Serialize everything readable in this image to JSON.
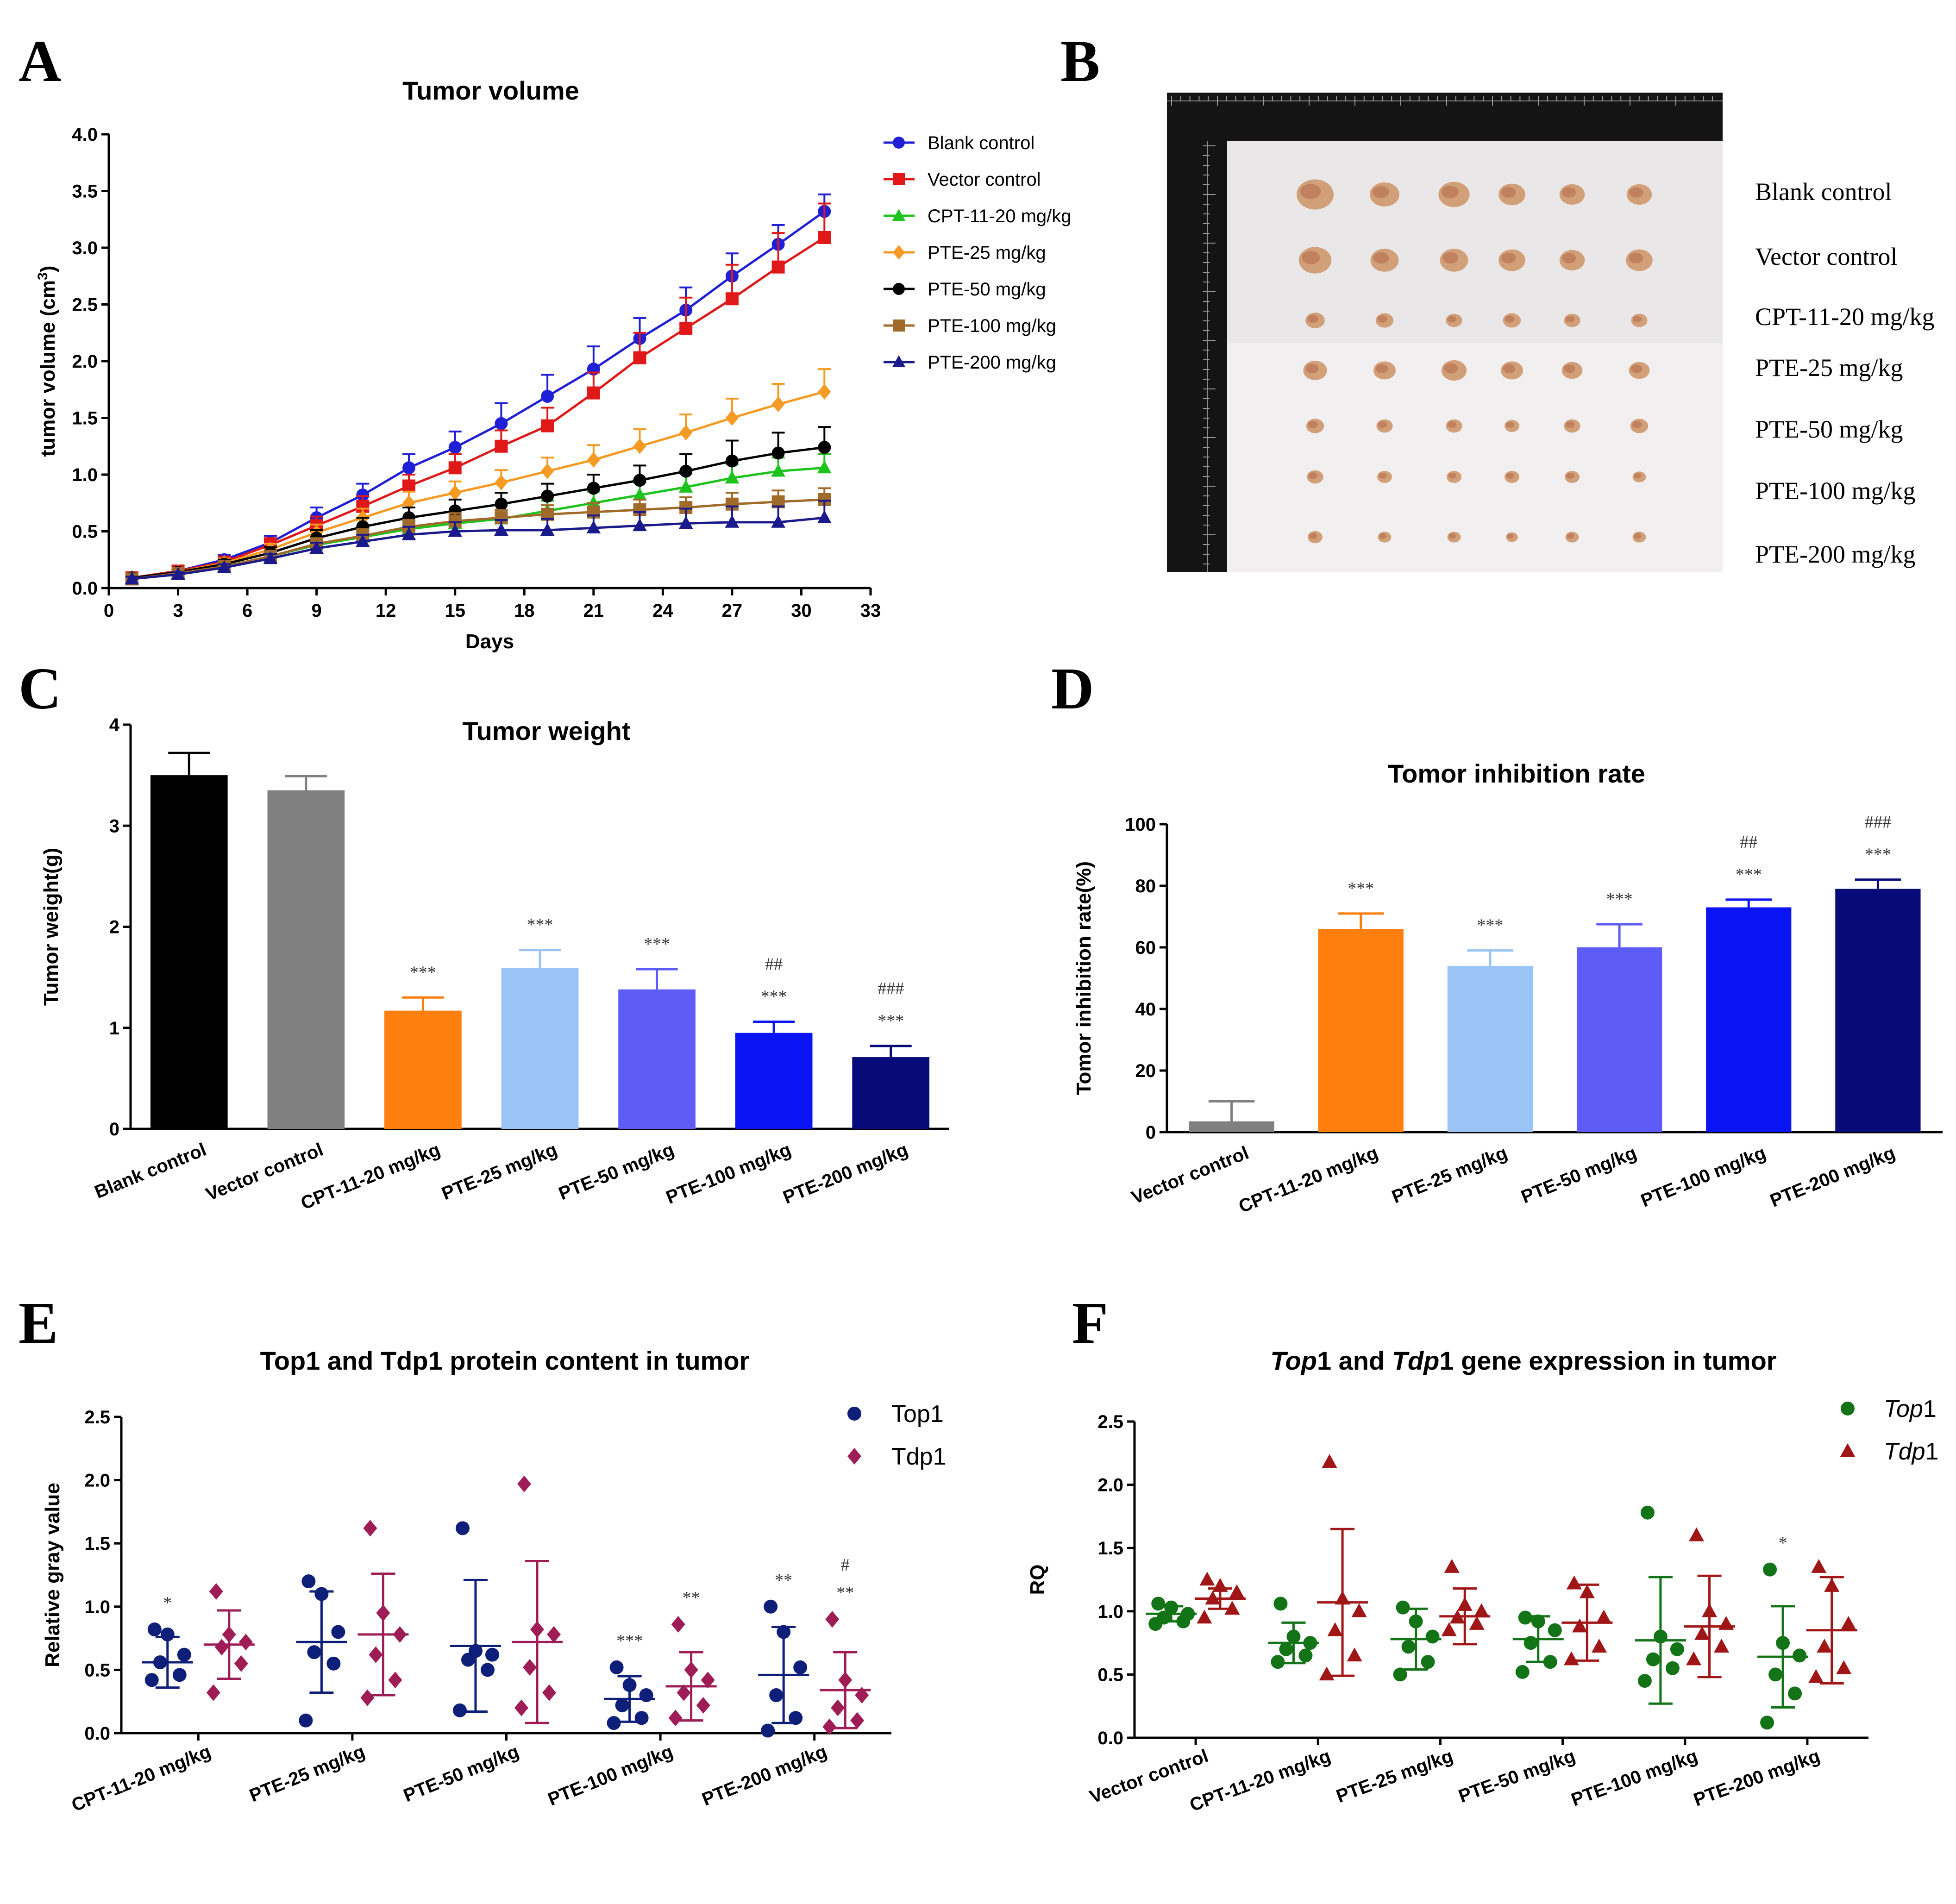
{
  "panels": {
    "A": "A",
    "B": "B",
    "C": "C",
    "D": "D",
    "E": "E",
    "F": "F"
  },
  "colors": {
    "blank": "#1f1fd6",
    "vector": "#e01818",
    "cpt": "#1ec41e",
    "pte25": "#f59a22",
    "pte50": "#000000",
    "pte100": "#a06a2a",
    "pte200": "#1a1a8c",
    "barBlank": "#000000",
    "barVector": "#808080",
    "barCpt": "#ff7f0e",
    "bar25": "#99c4f5",
    "bar50": "#5e5cf7",
    "bar100": "#0a14f2",
    "bar200": "#090a7a",
    "top1E": "#0e1f7a",
    "tdp1E": "#9e1d56",
    "top1F": "#137317",
    "tdp1F": "#a01515"
  },
  "photo": {
    "row_labels": [
      "Blank control",
      "Vector control",
      "CPT-11-20 mg/kg",
      "PTE-25 mg/kg",
      "PTE-50 mg/kg",
      "PTE-100 mg/kg",
      "PTE-200 mg/kg"
    ],
    "tumor_sizes": [
      [
        1.25,
        1.0,
        1.05,
        0.9,
        0.85,
        0.85
      ],
      [
        1.1,
        0.95,
        0.95,
        0.9,
        0.85,
        0.9
      ],
      [
        0.65,
        0.6,
        0.55,
        0.6,
        0.55,
        0.55
      ],
      [
        0.8,
        0.75,
        0.85,
        0.75,
        0.7,
        0.7
      ],
      [
        0.6,
        0.55,
        0.55,
        0.5,
        0.55,
        0.6
      ],
      [
        0.55,
        0.5,
        0.5,
        0.5,
        0.5,
        0.45
      ],
      [
        0.5,
        0.45,
        0.45,
        0.4,
        0.45,
        0.45
      ]
    ]
  },
  "chart_data": [
    {
      "id": "A",
      "type": "line",
      "title": "Tumor volume",
      "xlabel": "Days",
      "ylabel_main": "tumor volume (cm",
      "ylabel_sup": "3",
      "ylabel_end": ")",
      "xlim": [
        0,
        33
      ],
      "ylim": [
        0,
        4.0
      ],
      "xticks": [
        "0",
        "3",
        "6",
        "9",
        "12",
        "15",
        "18",
        "21",
        "24",
        "27",
        "30",
        "33"
      ],
      "yticks": [
        "0.0",
        "0.5",
        "1.0",
        "1.5",
        "2.0",
        "2.5",
        "3.0",
        "3.5",
        "4.0"
      ],
      "x": [
        1,
        3,
        5,
        7,
        9,
        11,
        13,
        15,
        17,
        19,
        21,
        23,
        25,
        27,
        29,
        31
      ],
      "series": [
        {
          "name": "Blank control",
          "color": "#1f1fd6",
          "marker": "circle",
          "values": [
            0.09,
            0.15,
            0.25,
            0.4,
            0.62,
            0.82,
            1.06,
            1.24,
            1.45,
            1.69,
            1.93,
            2.2,
            2.45,
            2.75,
            3.03,
            3.32
          ],
          "err": [
            0.02,
            0.03,
            0.04,
            0.06,
            0.09,
            0.1,
            0.12,
            0.14,
            0.18,
            0.19,
            0.2,
            0.18,
            0.2,
            0.2,
            0.17,
            0.15
          ]
        },
        {
          "name": "Vector control",
          "color": "#e01818",
          "marker": "square",
          "values": [
            0.09,
            0.15,
            0.23,
            0.38,
            0.55,
            0.72,
            0.9,
            1.06,
            1.25,
            1.43,
            1.72,
            2.03,
            2.29,
            2.55,
            2.83,
            3.09
          ],
          "err": [
            0.02,
            0.03,
            0.04,
            0.06,
            0.08,
            0.09,
            0.1,
            0.12,
            0.14,
            0.16,
            0.18,
            0.22,
            0.27,
            0.3,
            0.3,
            0.3
          ]
        },
        {
          "name": "CPT-11-20 mg/kg",
          "color": "#1ec41e",
          "marker": "triangle",
          "values": [
            0.08,
            0.13,
            0.19,
            0.28,
            0.38,
            0.45,
            0.52,
            0.57,
            0.61,
            0.68,
            0.75,
            0.82,
            0.89,
            0.97,
            1.03,
            1.06
          ],
          "err": [
            0.02,
            0.02,
            0.03,
            0.04,
            0.05,
            0.06,
            0.07,
            0.07,
            0.08,
            0.09,
            0.1,
            0.11,
            0.12,
            0.12,
            0.12,
            0.12
          ]
        },
        {
          "name": "PTE-25 mg/kg",
          "color": "#f59a22",
          "marker": "diamond",
          "values": [
            0.09,
            0.14,
            0.22,
            0.34,
            0.49,
            0.62,
            0.75,
            0.84,
            0.93,
            1.03,
            1.13,
            1.25,
            1.37,
            1.5,
            1.62,
            1.73
          ],
          "err": [
            0.02,
            0.03,
            0.04,
            0.05,
            0.07,
            0.08,
            0.1,
            0.1,
            0.11,
            0.12,
            0.13,
            0.15,
            0.16,
            0.17,
            0.18,
            0.2
          ]
        },
        {
          "name": "PTE-50 mg/kg",
          "color": "#000000",
          "marker": "circle",
          "values": [
            0.09,
            0.14,
            0.21,
            0.31,
            0.44,
            0.54,
            0.62,
            0.68,
            0.74,
            0.81,
            0.88,
            0.95,
            1.03,
            1.12,
            1.19,
            1.24
          ],
          "err": [
            0.02,
            0.03,
            0.04,
            0.05,
            0.07,
            0.08,
            0.09,
            0.1,
            0.1,
            0.11,
            0.12,
            0.13,
            0.15,
            0.18,
            0.18,
            0.18
          ]
        },
        {
          "name": "PTE-100 mg/kg",
          "color": "#a06a2a",
          "marker": "square",
          "values": [
            0.08,
            0.13,
            0.19,
            0.28,
            0.39,
            0.46,
            0.54,
            0.59,
            0.62,
            0.65,
            0.67,
            0.69,
            0.71,
            0.74,
            0.76,
            0.78
          ],
          "err": [
            0.02,
            0.02,
            0.03,
            0.04,
            0.05,
            0.06,
            0.06,
            0.07,
            0.07,
            0.08,
            0.08,
            0.09,
            0.09,
            0.1,
            0.1,
            0.1
          ]
        },
        {
          "name": "PTE-200 mg/kg",
          "color": "#1a1a8c",
          "marker": "triangle",
          "values": [
            0.08,
            0.12,
            0.18,
            0.26,
            0.35,
            0.41,
            0.47,
            0.5,
            0.51,
            0.51,
            0.53,
            0.55,
            0.57,
            0.58,
            0.58,
            0.62
          ],
          "err": [
            0.02,
            0.02,
            0.03,
            0.04,
            0.05,
            0.06,
            0.07,
            0.08,
            0.09,
            0.1,
            0.11,
            0.12,
            0.13,
            0.14,
            0.14,
            0.15
          ]
        }
      ]
    },
    {
      "id": "C",
      "type": "bar",
      "title": "Tumor weight",
      "ylabel": "Tumor weight(g)",
      "ylim": [
        0,
        4
      ],
      "yticks": [
        "0",
        "1",
        "2",
        "3",
        "4"
      ],
      "categories": [
        "Blank control",
        "Vector control",
        "CPT-11-20 mg/kg",
        "PTE-25 mg/kg",
        "PTE-50 mg/kg",
        "PTE-100 mg/kg",
        "PTE-200 mg/kg"
      ],
      "values": [
        3.5,
        3.35,
        1.17,
        1.59,
        1.38,
        0.95,
        0.71
      ],
      "err": [
        0.22,
        0.14,
        0.13,
        0.18,
        0.2,
        0.11,
        0.11
      ],
      "colors": [
        "#000000",
        "#808080",
        "#ff7f0e",
        "#99c4f5",
        "#5e5cf7",
        "#0a14f2",
        "#090a7a"
      ],
      "sig_upper": [
        "",
        "",
        "",
        "",
        "",
        "##",
        "###"
      ],
      "sig_lower": [
        "",
        "",
        "***",
        "***",
        "***",
        "***",
        "***"
      ]
    },
    {
      "id": "D",
      "type": "bar",
      "title": "Tomor inhibition rate",
      "ylabel": "Tomor inhibition rate(%)",
      "ylim": [
        0,
        100
      ],
      "yticks": [
        "0",
        "20",
        "40",
        "60",
        "80",
        "100"
      ],
      "categories": [
        "Vector control",
        "CPT-11-20 mg/kg",
        "PTE-25 mg/kg",
        "PTE-50 mg/kg",
        "PTE-100 mg/kg",
        "PTE-200 mg/kg"
      ],
      "values": [
        3.5,
        66,
        54,
        60,
        73,
        79
      ],
      "err": [
        6.5,
        5,
        5,
        7.5,
        2.5,
        3
      ],
      "colors": [
        "#808080",
        "#ff7f0e",
        "#99c4f5",
        "#5e5cf7",
        "#0a14f2",
        "#090a7a"
      ],
      "sig_upper": [
        "",
        "",
        "",
        "",
        "##",
        "###"
      ],
      "sig_lower": [
        "",
        "***",
        "***",
        "***",
        "***",
        "***"
      ]
    },
    {
      "id": "E",
      "type": "scatter",
      "title": "Top1 and Tdp1 protein content in tumor",
      "ylabel": "Relative gray value",
      "ylim": [
        0,
        2.5
      ],
      "yticks": [
        "0.0",
        "0.5",
        "1.0",
        "1.5",
        "2.0",
        "2.5"
      ],
      "categories": [
        "CPT-11-20 mg/kg",
        "PTE-25 mg/kg",
        "PTE-50 mg/kg",
        "PTE-100 mg/kg",
        "PTE-200 mg/kg"
      ],
      "series": [
        {
          "name": "Top1",
          "color": "#0e1f7a",
          "marker": "circle",
          "points": [
            [
              0.42,
              0.46,
              0.56,
              0.62,
              0.78,
              0.82
            ],
            [
              0.1,
              0.55,
              0.64,
              0.8,
              1.1,
              1.2
            ],
            [
              0.18,
              0.5,
              0.58,
              0.62,
              0.65,
              1.62
            ],
            [
              0.08,
              0.12,
              0.22,
              0.3,
              0.38,
              0.52
            ],
            [
              0.02,
              0.12,
              0.3,
              0.52,
              0.8,
              1.0
            ]
          ],
          "mean": [
            0.56,
            0.72,
            0.69,
            0.27,
            0.46
          ],
          "sd": [
            0.2,
            0.4,
            0.52,
            0.18,
            0.38
          ],
          "sig_upper": [
            "",
            "",
            "",
            "",
            ""
          ],
          "sig_lower": [
            "*",
            "",
            "",
            "***",
            "**"
          ]
        },
        {
          "name": "Tdp1",
          "color": "#9e1d56",
          "marker": "diamond",
          "points": [
            [
              0.32,
              0.55,
              0.68,
              0.72,
              0.78,
              1.12
            ],
            [
              0.28,
              0.42,
              0.62,
              0.78,
              0.95,
              1.62
            ],
            [
              0.2,
              0.32,
              0.52,
              0.78,
              0.82,
              1.97
            ],
            [
              0.12,
              0.22,
              0.32,
              0.42,
              0.5,
              0.86
            ],
            [
              0.05,
              0.1,
              0.2,
              0.3,
              0.42,
              0.9
            ]
          ],
          "mean": [
            0.7,
            0.78,
            0.72,
            0.37,
            0.34
          ],
          "sd": [
            0.27,
            0.48,
            0.64,
            0.27,
            0.3
          ],
          "sig_upper": [
            "",
            "",
            "",
            "",
            "#"
          ],
          "sig_lower": [
            "",
            "",
            "",
            "**",
            "**"
          ]
        }
      ]
    },
    {
      "id": "F",
      "type": "scatter",
      "title_parts": [
        "Top",
        "1 and ",
        "Tdp",
        "1 gene expression in tumor"
      ],
      "ylabel": "RQ",
      "ylim": [
        0,
        2.5
      ],
      "yticks": [
        "0.0",
        "0.5",
        "1.0",
        "1.5",
        "2.0",
        "2.5"
      ],
      "categories": [
        "Vector control",
        "CPT-11-20 mg/kg",
        "PTE-25 mg/kg",
        "PTE-50 mg/kg",
        "PTE-100 mg/kg",
        "PTE-200 mg/kg"
      ],
      "series": [
        {
          "name_parts": [
            "Top",
            "1"
          ],
          "color": "#137317",
          "marker": "circle",
          "points": [
            [
              0.9,
              0.92,
              0.95,
              0.98,
              1.03,
              1.06
            ],
            [
              0.6,
              0.65,
              0.7,
              0.75,
              0.8,
              1.06
            ],
            [
              0.5,
              0.6,
              0.72,
              0.8,
              0.92,
              1.03
            ],
            [
              0.52,
              0.6,
              0.75,
              0.85,
              0.92,
              0.95
            ],
            [
              0.45,
              0.55,
              0.62,
              0.7,
              0.8,
              1.78
            ],
            [
              0.12,
              0.35,
              0.5,
              0.65,
              0.75,
              1.33
            ]
          ],
          "mean": [
            0.98,
            0.75,
            0.78,
            0.78,
            0.77,
            0.64
          ],
          "sd": [
            0.06,
            0.16,
            0.24,
            0.18,
            0.5,
            0.4
          ],
          "sig": [
            "",
            "",
            "",
            "",
            "",
            "*"
          ]
        },
        {
          "name_parts": [
            "Tdp",
            "1"
          ],
          "color": "#a01515",
          "marker": "triangle",
          "points": [
            [
              0.95,
              1.02,
              1.1,
              1.15,
              1.2,
              1.25
            ],
            [
              0.5,
              0.65,
              0.85,
              1.0,
              1.1,
              2.18
            ],
            [
              0.85,
              0.9,
              0.95,
              1.0,
              1.05,
              1.35
            ],
            [
              0.62,
              0.72,
              0.88,
              0.95,
              1.15,
              1.22
            ],
            [
              0.62,
              0.72,
              0.82,
              0.9,
              1.0,
              1.6
            ],
            [
              0.48,
              0.55,
              0.72,
              0.9,
              1.2,
              1.35
            ]
          ],
          "mean": [
            1.1,
            1.07,
            0.96,
            0.91,
            0.88,
            0.85
          ],
          "sd": [
            0.08,
            0.58,
            0.22,
            0.3,
            0.4,
            0.42
          ],
          "sig": [
            "",
            "",
            "",
            "",
            "",
            ""
          ]
        }
      ]
    }
  ]
}
